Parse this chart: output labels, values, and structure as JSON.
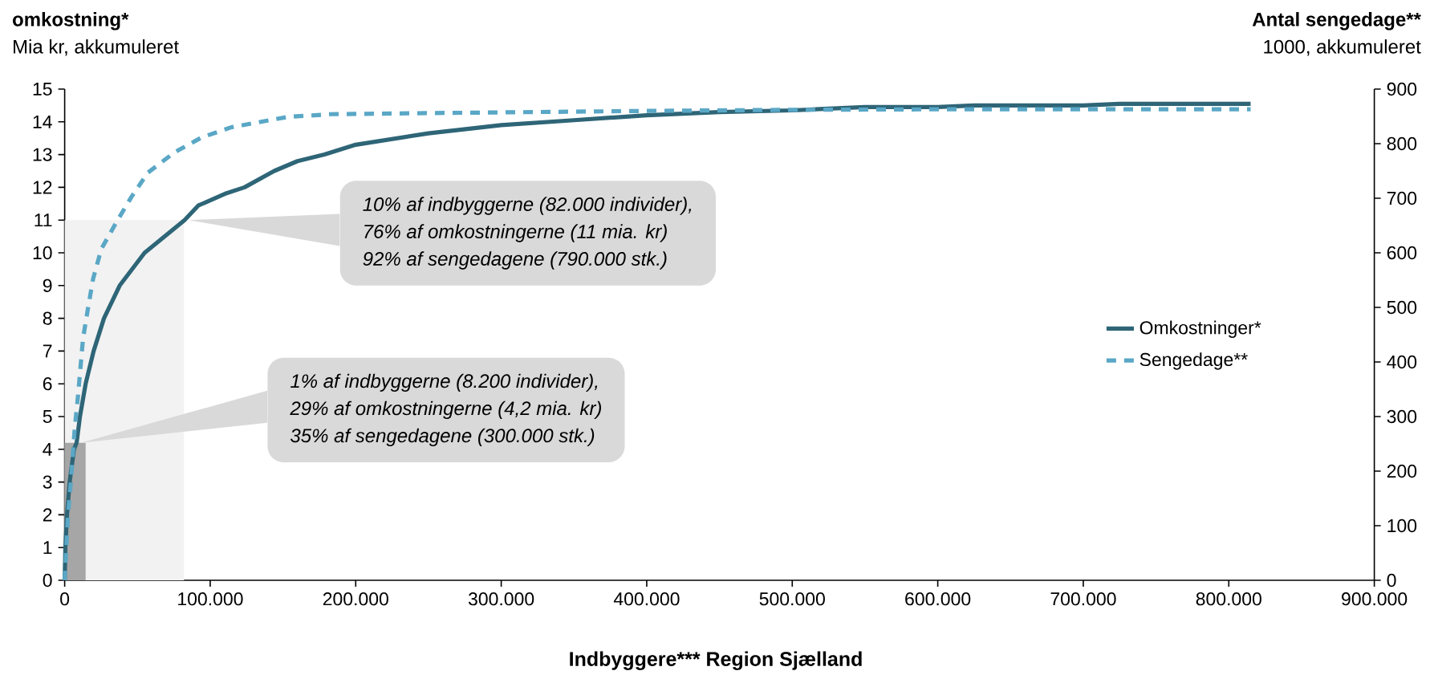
{
  "chart_data": {
    "type": "line",
    "xlabel": "Indbyggere*** Region Sjælland",
    "ylabel": "omkostning*",
    "y2label": "Antal sengedage**",
    "xlim": [
      0,
      900000
    ],
    "xticks": [
      0,
      {
        "value": 100000,
        "label": "100.000"
      },
      {
        "value": 200000,
        "label": "200.000"
      },
      {
        "value": 300000,
        "label": "300.000"
      },
      {
        "value": 400000,
        "label": "400.000"
      },
      {
        "value": 500000,
        "label": "500.000"
      },
      {
        "value": 600000,
        "label": "600.000"
      },
      {
        "value": 700000,
        "label": "700.000"
      },
      {
        "value": 800000,
        "label": "800.000"
      },
      {
        "value": 900000,
        "label": "900.000"
      }
    ],
    "ylim": [
      0,
      15
    ],
    "yticks": [
      0,
      1,
      2,
      3,
      4,
      5,
      6,
      7,
      8,
      9,
      10,
      11,
      12,
      13,
      14,
      15
    ],
    "y2lim": [
      0,
      900
    ],
    "y2ticks": [
      0,
      100,
      200,
      300,
      400,
      500,
      600,
      700,
      800,
      900
    ],
    "legend": "right",
    "series": [
      {
        "type": "area",
        "color": "#f2f2f2",
        "x": [
          0,
          82000
        ],
        "values": [
          11,
          11
        ]
      },
      {
        "type": "area",
        "color": "#a6a6a6",
        "x": [
          0,
          14400
        ],
        "values": [
          4.2,
          4.2
        ]
      },
      {
        "name": "Omkostninger*",
        "color": "#2e6577",
        "line_style": "solid",
        "x": [
          0,
          460,
          1600,
          3400,
          6400,
          8200,
          10500,
          14400,
          19900,
          27000,
          37800,
          54900,
          82400,
          92000,
          100000,
          110000,
          123600,
          144000,
          160000,
          178500,
          200000,
          250000,
          300000,
          350000,
          400000,
          450000,
          500000,
          550000,
          600000,
          625000,
          700000,
          725000,
          815000
        ],
        "values": [
          0,
          1,
          2,
          3,
          4,
          4.2,
          5,
          6,
          7,
          8,
          9,
          10,
          11,
          11.45,
          11.6,
          11.8,
          12,
          12.5,
          12.8,
          13,
          13.3,
          13.65,
          13.9,
          14.05,
          14.2,
          14.3,
          14.35,
          14.45,
          14.45,
          14.5,
          14.5,
          14.55,
          14.55
        ]
      },
      {
        "name": "Sengedage**",
        "color": "#5aa7c6",
        "line_style": "dashed",
        "axis": "y2",
        "x": [
          0,
          1100,
          2300,
          4100,
          6900,
          9200,
          12600,
          16000,
          19500,
          25200,
          35500,
          45800,
          57200,
          75500,
          93800,
          114400,
          132700,
          153300,
          183000,
          250000,
          400000,
          500000,
          600000,
          815000
        ],
        "values": [
          0,
          59,
          120,
          175,
          278,
          339,
          443,
          498,
          552,
          607,
          656,
          702,
          747,
          784,
          811,
          830,
          839,
          849,
          854,
          856,
          860,
          862,
          863,
          863
        ]
      }
    ],
    "annotations": [
      "Mia kr, akkumuleret",
      "1000, akkumuleret",
      {
        "text": "10% af indbyggerne (82.000 individer),",
        "x": 82000,
        "y": 11
      },
      "76% af omkostningerne (11 mia. kr)",
      "92% af sengedagene (790.000 stk.)",
      {
        "text": "1% af indbyggerne (8.200 individer),",
        "x": 8200,
        "y": 4.2
      },
      "29% af omkostningerne (4,2 mia. kr)",
      "35% af sengedagene (300.000 stk.)"
    ]
  }
}
